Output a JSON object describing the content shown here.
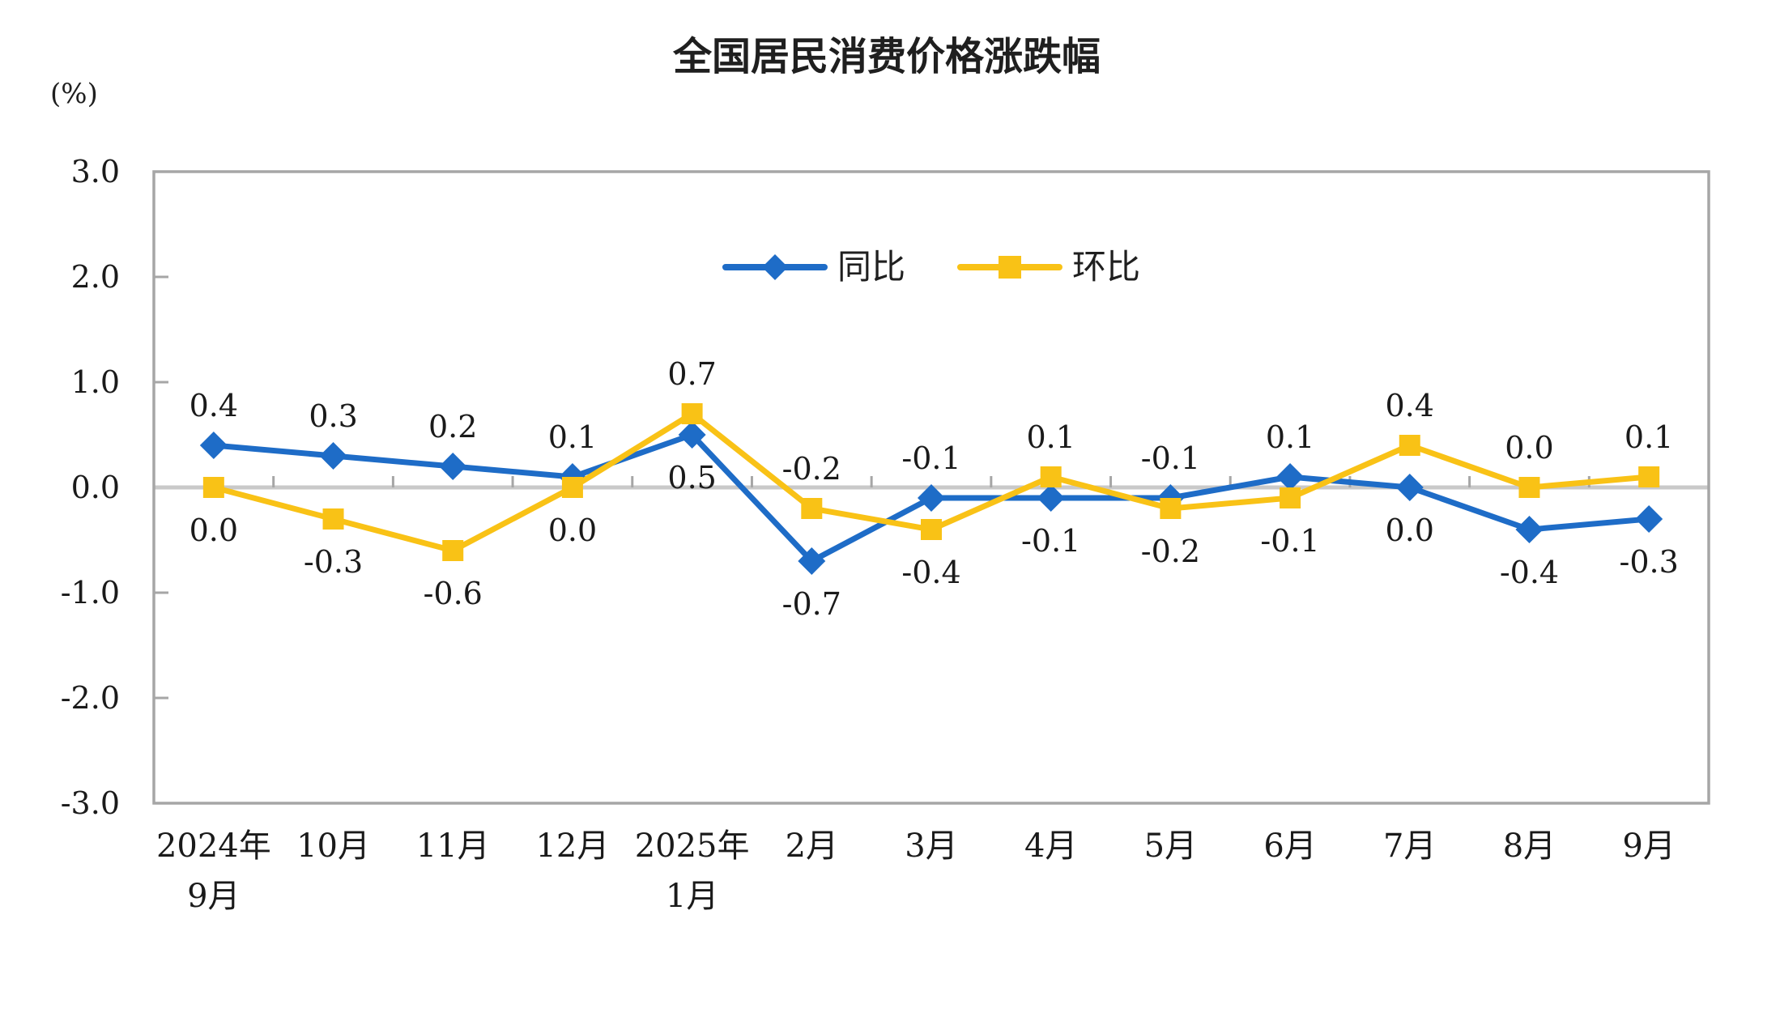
{
  "chart_data": {
    "type": "line",
    "title": "全国居民消费价格涨跌幅",
    "unit_label": "(%)",
    "categories": [
      "2024年\n9月",
      "10月",
      "11月",
      "12月",
      "2025年\n1月",
      "2月",
      "3月",
      "4月",
      "5月",
      "6月",
      "7月",
      "8月",
      "9月"
    ],
    "ylim": [
      -3.0,
      3.0
    ],
    "yticks": [
      3.0,
      2.0,
      1.0,
      0.0,
      -1.0,
      -2.0,
      -3.0
    ],
    "ytick_labels": [
      "3.0",
      "2.0",
      "1.0",
      "0.0",
      "-1.0",
      "-2.0",
      "-3.0"
    ],
    "grid": "zero-line-only",
    "legend_position": "top-center-inside",
    "series": [
      {
        "name": "同比",
        "marker": "diamond",
        "color": "#1E6CC7",
        "values": [
          0.4,
          0.3,
          0.2,
          0.1,
          0.5,
          -0.7,
          -0.1,
          -0.1,
          -0.1,
          0.1,
          0.0,
          -0.4,
          -0.3
        ],
        "labels": [
          "0.4",
          "0.3",
          "0.2",
          "0.1",
          "0.5",
          "-0.7",
          "-0.1",
          "-0.1",
          "-0.1",
          "0.1",
          "0.0",
          "-0.4",
          "-0.3"
        ],
        "label_positions": [
          "above",
          "above",
          "above",
          "above",
          "below",
          "below",
          "above",
          "below",
          "above",
          "above",
          "below",
          "below",
          "below"
        ]
      },
      {
        "name": "环比",
        "marker": "square",
        "color": "#F9C216",
        "values": [
          0.0,
          -0.3,
          -0.6,
          0.0,
          0.7,
          -0.2,
          -0.4,
          0.1,
          -0.2,
          -0.1,
          0.4,
          0.0,
          0.1
        ],
        "labels": [
          "0.0",
          "-0.3",
          "-0.6",
          "0.0",
          "0.7",
          "-0.2",
          "-0.4",
          "0.1",
          "-0.2",
          "-0.1",
          "0.4",
          "0.0",
          "0.1"
        ],
        "label_positions": [
          "below",
          "below",
          "below",
          "below",
          "above",
          "above",
          "below",
          "above",
          "below",
          "below",
          "above",
          "above",
          "above"
        ]
      }
    ],
    "colors": {
      "axis_border": "#A6A6A6",
      "zero_line": "#C9C9C9",
      "text": "#1A1A1A"
    }
  }
}
